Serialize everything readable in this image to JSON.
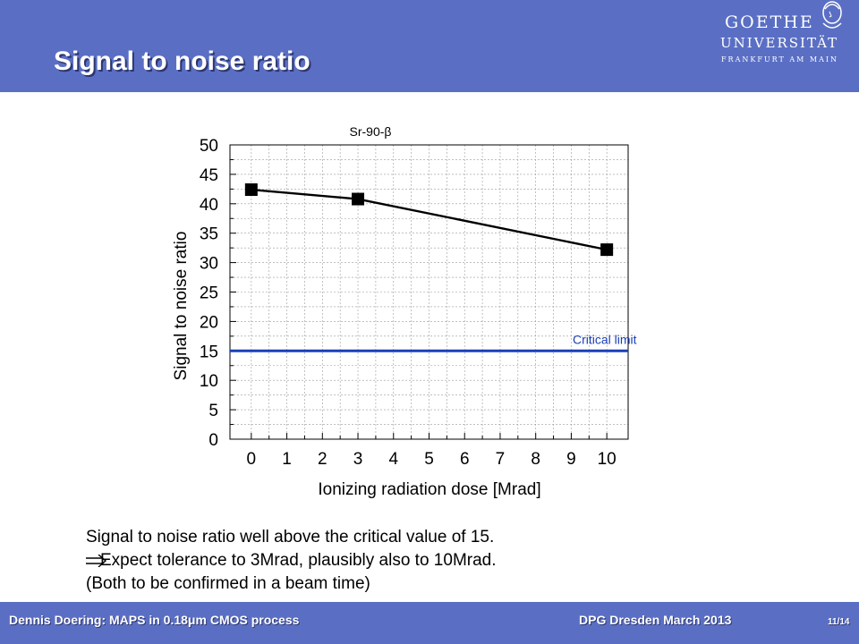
{
  "slide": {
    "title": "Signal to noise ratio"
  },
  "logo": {
    "line1": "GOETHE",
    "line2": "UNIVERSITÄT",
    "line3": "FRANKFURT AM MAIN"
  },
  "colors": {
    "header_bg": "#5a6fc4",
    "series_line": "#000000",
    "critical_line": "#1a3fb8",
    "critical_label": "#1a3fb8"
  },
  "chart_data": {
    "type": "line",
    "title": "Sr-90-β",
    "xlabel": "Ionizing radiation dose [Mrad]",
    "ylabel": "Signal to noise ratio",
    "xlim": [
      -0.6,
      10.6
    ],
    "ylim": [
      0,
      50
    ],
    "xticks": [
      "0",
      "1",
      "2",
      "3",
      "4",
      "5",
      "6",
      "7",
      "8",
      "9",
      "10"
    ],
    "yticks": [
      "0",
      "5",
      "10",
      "15",
      "20",
      "25",
      "30",
      "35",
      "40",
      "45",
      "50"
    ],
    "grid": true,
    "series": [
      {
        "x": [
          0,
          3,
          10
        ],
        "y": [
          42.4,
          40.8,
          32.2
        ],
        "marker": "square"
      }
    ],
    "reference_line": {
      "y": 15,
      "label": "Critical limit"
    }
  },
  "body": {
    "line1": "Signal to noise ratio well above the critical value of 15.",
    "line2": "Expect tolerance to 3Mrad, plausibly also to 10Mrad.",
    "line3": "(Both to be confirmed in a beam time)"
  },
  "footer": {
    "left": "Dennis Doering: MAPS in 0.18μm CMOS process",
    "center": "DPG Dresden March 2013",
    "page": "11/14"
  }
}
